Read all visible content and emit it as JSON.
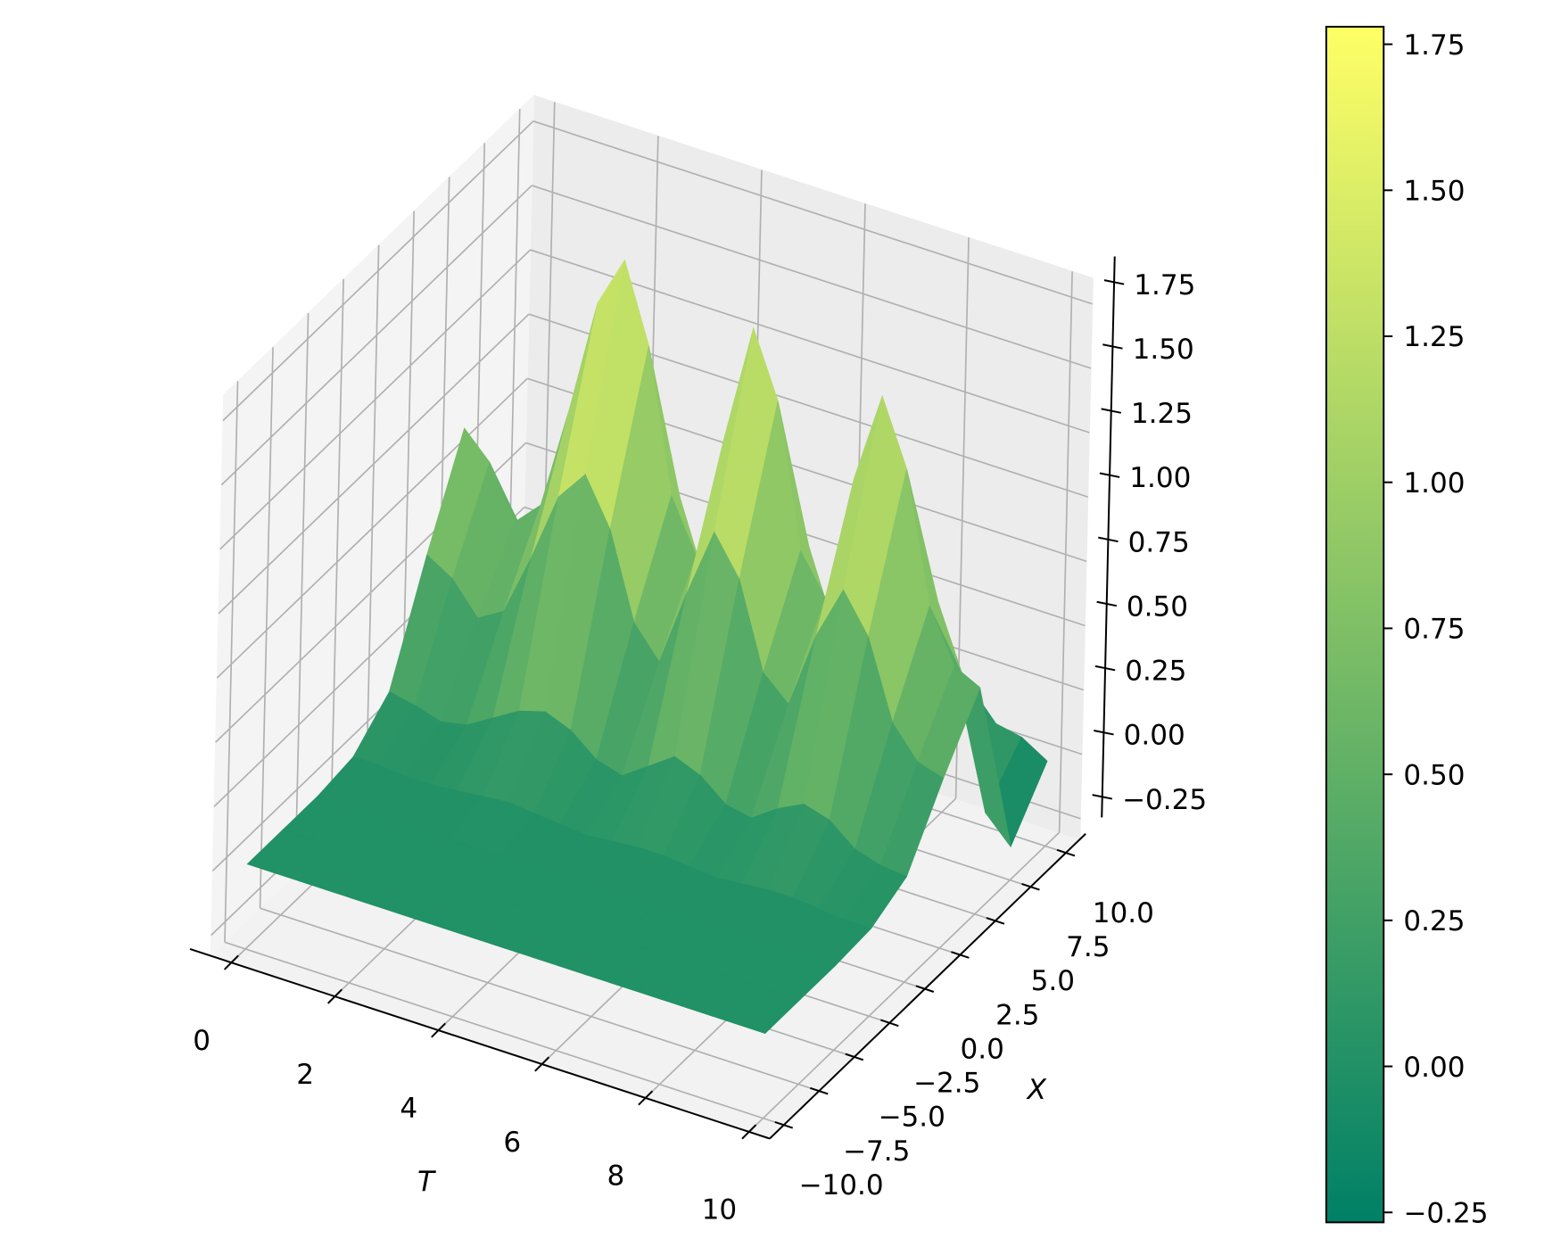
{
  "chart_data": {
    "type": "surface",
    "t_label": "T",
    "x_label": "X",
    "T": [
      0,
      0.5,
      1,
      1.5,
      2,
      2.5,
      3,
      3.5,
      4,
      4.5,
      5,
      5.5,
      6,
      6.5,
      7,
      7.5,
      8,
      8.5,
      9,
      9.5,
      10
    ],
    "X": [
      -10,
      -7.5,
      -5,
      -2.5,
      0,
      2.5,
      5,
      7.5,
      10
    ],
    "Z": [
      [
        0,
        0,
        0,
        0.02,
        0.14,
        0.54,
        0.9,
        0.45,
        0.09
      ],
      [
        0,
        0,
        0,
        0.02,
        0.12,
        0.48,
        0.8,
        0.4,
        0.08
      ],
      [
        0,
        0,
        0,
        0.01,
        0.09,
        0.36,
        0.6,
        0.3,
        0.06
      ],
      [
        0,
        0,
        0,
        0.01,
        0.11,
        0.42,
        0.7,
        0.35,
        0.07
      ],
      [
        0,
        0,
        0,
        0.02,
        0.17,
        0.66,
        1.1,
        0.55,
        0.11
      ],
      [
        0,
        0,
        0,
        0.03,
        0.23,
        0.93,
        1.55,
        0.78,
        0.16
      ],
      [
        0,
        0,
        0,
        0.04,
        0.26,
        1.05,
        1.75,
        0.88,
        0.18
      ],
      [
        0,
        0,
        0,
        0.03,
        0.22,
        0.87,
        1.45,
        0.73,
        0.15
      ],
      [
        0,
        0,
        0,
        0.02,
        0.14,
        0.54,
        0.9,
        0.45,
        0.09
      ],
      [
        0,
        0,
        0,
        0.01,
        0.11,
        0.42,
        0.7,
        0.35,
        0.07
      ],
      [
        0,
        0,
        0,
        0.02,
        0.18,
        0.72,
        1.2,
        0.6,
        0.12
      ],
      [
        0,
        0,
        0,
        0.03,
        0.25,
        0.99,
        1.65,
        0.83,
        0.17
      ],
      [
        0,
        0,
        0,
        0.03,
        0.21,
        0.84,
        1.4,
        0.7,
        0.14
      ],
      [
        0,
        0,
        0,
        0.02,
        0.13,
        0.51,
        0.85,
        0.43,
        0.09
      ],
      [
        0,
        0,
        0,
        0.01,
        0.11,
        0.42,
        0.7,
        0.35,
        0.07
      ],
      [
        0,
        0,
        0,
        0.02,
        0.18,
        0.72,
        1.2,
        0.6,
        0.12
      ],
      [
        0,
        0,
        0,
        0.03,
        0.23,
        0.93,
        1.55,
        0.78,
        0.16
      ],
      [
        0,
        0,
        0,
        0.03,
        0.2,
        0.78,
        1.3,
        0.65,
        0.13
      ],
      [
        0,
        0,
        0,
        0.02,
        0.12,
        0.48,
        0.8,
        0.4,
        0.08
      ],
      [
        0,
        0,
        0,
        0.01,
        0.09,
        0.36,
        0.6,
        -0.1,
        0.06
      ],
      [
        0,
        0,
        0,
        0.01,
        0.08,
        0.33,
        0.55,
        -0.2,
        0
      ]
    ],
    "tlim": [
      -0.4,
      10.4
    ],
    "xlim": [
      -11,
      11
    ],
    "zlim": [
      -0.33,
      1.85
    ],
    "tticks": [
      0,
      2,
      4,
      6,
      8,
      10
    ],
    "xticks": [
      {
        "value": -10,
        "label": "−10.0"
      },
      {
        "value": -7.5,
        "label": "−7.5"
      },
      {
        "value": -5,
        "label": "−5.0"
      },
      {
        "value": -2.5,
        "label": "−2.5"
      },
      {
        "value": 0,
        "label": "0.0"
      },
      {
        "value": 2.5,
        "label": "2.5"
      },
      {
        "value": 5,
        "label": "5.0"
      },
      {
        "value": 7.5,
        "label": "7.5"
      },
      {
        "value": 10,
        "label": "10.0"
      }
    ],
    "zticks": [
      {
        "value": -0.25,
        "label": "−0.25"
      },
      {
        "value": 0,
        "label": "0.00"
      },
      {
        "value": 0.25,
        "label": "0.25"
      },
      {
        "value": 0.5,
        "label": "0.50"
      },
      {
        "value": 0.75,
        "label": "0.75"
      },
      {
        "value": 1,
        "label": "1.00"
      },
      {
        "value": 1.25,
        "label": "1.25"
      },
      {
        "value": 1.5,
        "label": "1.50"
      },
      {
        "value": 1.75,
        "label": "1.75"
      }
    ],
    "clim": [
      -0.267,
      1.78
    ],
    "colorbar_ticks": [
      {
        "value": -0.25,
        "label": "−0.25"
      },
      {
        "value": 0,
        "label": "0.00"
      },
      {
        "value": 0.25,
        "label": "0.25"
      },
      {
        "value": 0.5,
        "label": "0.50"
      },
      {
        "value": 0.75,
        "label": "0.75"
      },
      {
        "value": 1,
        "label": "1.00"
      },
      {
        "value": 1.25,
        "label": "1.25"
      },
      {
        "value": 1.5,
        "label": "1.50"
      },
      {
        "value": 1.75,
        "label": "1.75"
      }
    ],
    "colormap": [
      "#008066",
      "#ffff66"
    ],
    "grid": true
  }
}
